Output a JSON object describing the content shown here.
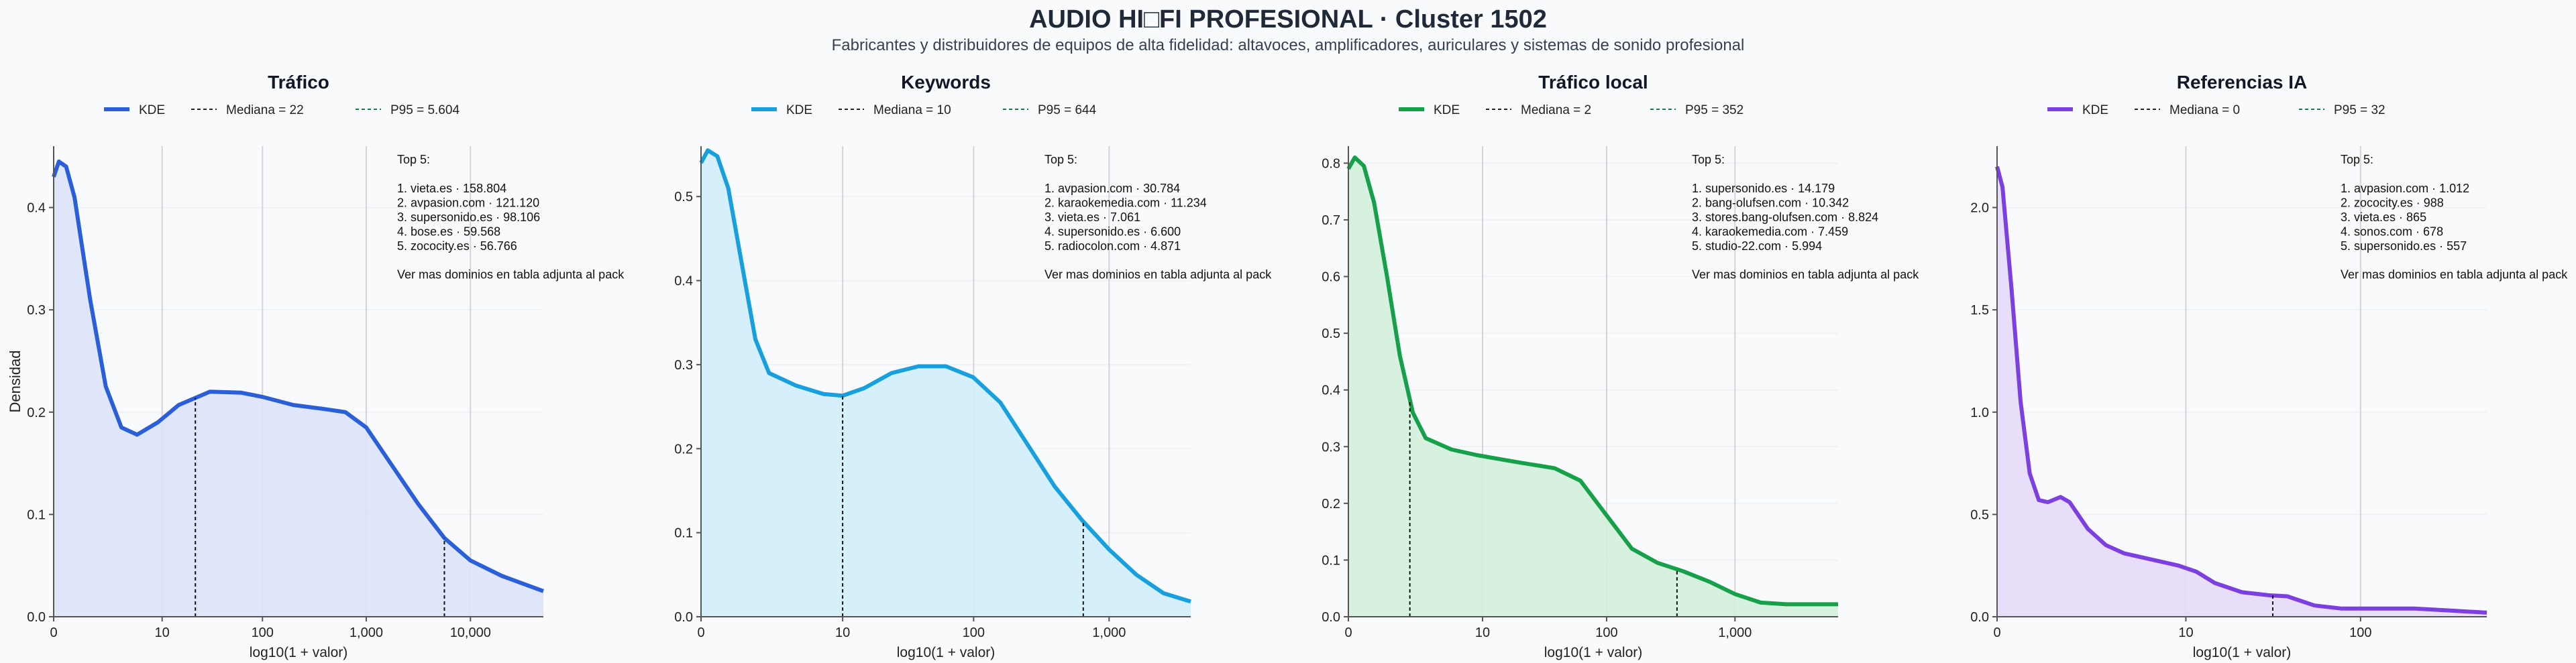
{
  "title": "AUDIO HI□FI PROFESIONAL · Cluster 1502",
  "subtitle": "Fabricantes y distribuidores de equipos de alta fidelidad: altavoces, amplificadores, auriculares y sistemas de sonido profesional",
  "ylabel": "Densidad",
  "chart_data": [
    {
      "type": "area",
      "title": "Tráfico",
      "color": "#2b5fd9",
      "fill": "#dbe3f8",
      "xlabel": "log10(1 + valor)",
      "x_ticks": [
        "0",
        "10",
        "100",
        "1,000",
        "10,000"
      ],
      "x_tick_positions": [
        0,
        1.041,
        2.004,
        3.0,
        4.0
      ],
      "xlim": [
        0,
        4.7
      ],
      "ylim": [
        0,
        0.46
      ],
      "y_ticks": [
        "0.0",
        "0.1",
        "0.2",
        "0.3",
        "0.4"
      ],
      "y_tick_values": [
        0.0,
        0.1,
        0.2,
        0.3,
        0.4
      ],
      "legend": [
        "KDE",
        "Mediana = 22",
        "P95 = 5.604"
      ],
      "median": 1.36,
      "p95": 3.75,
      "kde": [
        [
          0,
          0.43
        ],
        [
          0.05,
          0.445
        ],
        [
          0.12,
          0.44
        ],
        [
          0.2,
          0.41
        ],
        [
          0.35,
          0.31
        ],
        [
          0.5,
          0.225
        ],
        [
          0.65,
          0.185
        ],
        [
          0.8,
          0.178
        ],
        [
          1.0,
          0.19
        ],
        [
          1.2,
          0.207
        ],
        [
          1.5,
          0.22
        ],
        [
          1.8,
          0.219
        ],
        [
          2.0,
          0.215
        ],
        [
          2.3,
          0.207
        ],
        [
          2.6,
          0.203
        ],
        [
          2.8,
          0.2
        ],
        [
          3.0,
          0.185
        ],
        [
          3.2,
          0.155
        ],
        [
          3.5,
          0.11
        ],
        [
          3.75,
          0.077
        ],
        [
          4.0,
          0.055
        ],
        [
          4.3,
          0.04
        ],
        [
          4.7,
          0.025
        ]
      ],
      "top5_title": "Top 5:",
      "top5": [
        "1. vieta.es · 158.804",
        "2. avpasion.com · 121.120",
        "3. supersonido.es · 98.106",
        "4. bose.es · 59.568",
        "5. zococity.es · 56.766"
      ],
      "more": "Ver mas dominios en tabla adjunta al pack"
    },
    {
      "type": "area",
      "title": "Keywords",
      "color": "#18a0de",
      "fill": "#d2eefb",
      "xlabel": "log10(1 + valor)",
      "x_ticks": [
        "0",
        "10",
        "100",
        "1,000"
      ],
      "x_tick_positions": [
        0,
        1.041,
        2.004,
        3.0
      ],
      "xlim": [
        0,
        3.6
      ],
      "ylim": [
        0,
        0.56
      ],
      "y_ticks": [
        "0.0",
        "0.1",
        "0.2",
        "0.3",
        "0.4",
        "0.5"
      ],
      "y_tick_values": [
        0.0,
        0.1,
        0.2,
        0.3,
        0.4,
        0.5
      ],
      "legend": [
        "KDE",
        "Mediana = 10",
        "P95 = 644"
      ],
      "median": 1.041,
      "p95": 2.81,
      "kde": [
        [
          0,
          0.54
        ],
        [
          0.05,
          0.555
        ],
        [
          0.12,
          0.548
        ],
        [
          0.2,
          0.51
        ],
        [
          0.3,
          0.42
        ],
        [
          0.4,
          0.33
        ],
        [
          0.5,
          0.29
        ],
        [
          0.7,
          0.275
        ],
        [
          0.9,
          0.265
        ],
        [
          1.04,
          0.263
        ],
        [
          1.2,
          0.272
        ],
        [
          1.4,
          0.29
        ],
        [
          1.6,
          0.298
        ],
        [
          1.8,
          0.298
        ],
        [
          2.0,
          0.285
        ],
        [
          2.2,
          0.255
        ],
        [
          2.4,
          0.205
        ],
        [
          2.6,
          0.155
        ],
        [
          2.8,
          0.115
        ],
        [
          3.0,
          0.08
        ],
        [
          3.2,
          0.05
        ],
        [
          3.4,
          0.028
        ],
        [
          3.6,
          0.018
        ]
      ],
      "top5_title": "Top 5:",
      "top5": [
        "1. avpasion.com · 30.784",
        "2. karaokemedia.com · 11.234",
        "3. vieta.es · 7.061",
        "4. supersonido.es · 6.600",
        "5. radiocolon.com · 4.871"
      ],
      "more": "Ver mas dominios en tabla adjunta al pack"
    },
    {
      "type": "area",
      "title": "Tráfico local",
      "color": "#16a04a",
      "fill": "#d3efdc",
      "xlabel": "log10(1 + valor)",
      "x_ticks": [
        "0",
        "10",
        "100",
        "1,000"
      ],
      "x_tick_positions": [
        0,
        1.041,
        2.004,
        3.0
      ],
      "xlim": [
        0,
        3.8
      ],
      "ylim": [
        0,
        0.83
      ],
      "y_ticks": [
        "0.0",
        "0.1",
        "0.2",
        "0.3",
        "0.4",
        "0.5",
        "0.6",
        "0.7",
        "0.8"
      ],
      "y_tick_values": [
        0.0,
        0.1,
        0.2,
        0.3,
        0.4,
        0.5,
        0.6,
        0.7,
        0.8
      ],
      "legend": [
        "KDE",
        "Mediana = 2",
        "P95 = 352"
      ],
      "median": 0.477,
      "p95": 2.55,
      "kde": [
        [
          0,
          0.79
        ],
        [
          0.05,
          0.81
        ],
        [
          0.12,
          0.795
        ],
        [
          0.2,
          0.73
        ],
        [
          0.3,
          0.6
        ],
        [
          0.4,
          0.46
        ],
        [
          0.5,
          0.36
        ],
        [
          0.6,
          0.315
        ],
        [
          0.8,
          0.295
        ],
        [
          1.0,
          0.285
        ],
        [
          1.3,
          0.273
        ],
        [
          1.6,
          0.262
        ],
        [
          1.8,
          0.24
        ],
        [
          2.0,
          0.18
        ],
        [
          2.2,
          0.12
        ],
        [
          2.4,
          0.095
        ],
        [
          2.6,
          0.08
        ],
        [
          2.8,
          0.062
        ],
        [
          3.0,
          0.04
        ],
        [
          3.2,
          0.025
        ],
        [
          3.4,
          0.022
        ],
        [
          3.6,
          0.022
        ],
        [
          3.8,
          0.022
        ]
      ],
      "top5_title": "Top 5:",
      "top5": [
        "1. supersonido.es · 14.179",
        "2. bang-olufsen.com · 10.342",
        "3. stores.bang-olufsen.com · 8.824",
        "4. karaokemedia.com · 7.459",
        "5. studio-22.com · 5.994"
      ],
      "more": "Ver mas dominios en tabla adjunta al pack"
    },
    {
      "type": "area",
      "title": "Referencias IA",
      "color": "#7c3fe0",
      "fill": "#e6dafa",
      "xlabel": "log10(1 + valor)",
      "x_ticks": [
        "0",
        "10",
        "100"
      ],
      "x_tick_positions": [
        0,
        1.041,
        2.004
      ],
      "xlim": [
        0,
        2.7
      ],
      "ylim": [
        0,
        2.3
      ],
      "y_ticks": [
        "0.0",
        "0.5",
        "1.0",
        "1.5",
        "2.0"
      ],
      "y_tick_values": [
        0.0,
        0.5,
        1.0,
        1.5,
        2.0
      ],
      "legend": [
        "KDE",
        "Mediana = 0",
        "P95 = 32"
      ],
      "median": 0,
      "p95": 1.52,
      "kde": [
        [
          0,
          2.2
        ],
        [
          0.03,
          2.1
        ],
        [
          0.08,
          1.6
        ],
        [
          0.13,
          1.05
        ],
        [
          0.18,
          0.7
        ],
        [
          0.23,
          0.57
        ],
        [
          0.28,
          0.56
        ],
        [
          0.35,
          0.585
        ],
        [
          0.4,
          0.56
        ],
        [
          0.5,
          0.43
        ],
        [
          0.6,
          0.35
        ],
        [
          0.7,
          0.31
        ],
        [
          0.9,
          0.27
        ],
        [
          1.0,
          0.25
        ],
        [
          1.1,
          0.22
        ],
        [
          1.2,
          0.165
        ],
        [
          1.35,
          0.12
        ],
        [
          1.5,
          0.105
        ],
        [
          1.6,
          0.1
        ],
        [
          1.75,
          0.055
        ],
        [
          1.9,
          0.04
        ],
        [
          2.1,
          0.04
        ],
        [
          2.3,
          0.04
        ],
        [
          2.5,
          0.03
        ],
        [
          2.7,
          0.02
        ]
      ],
      "top5_title": "Top 5:",
      "top5": [
        "1. avpasion.com · 1.012",
        "2. zococity.es · 988",
        "3. vieta.es · 865",
        "4. sonos.com · 678",
        "5. supersonido.es · 557"
      ],
      "more": "Ver mas dominios en tabla adjunta al pack"
    }
  ]
}
